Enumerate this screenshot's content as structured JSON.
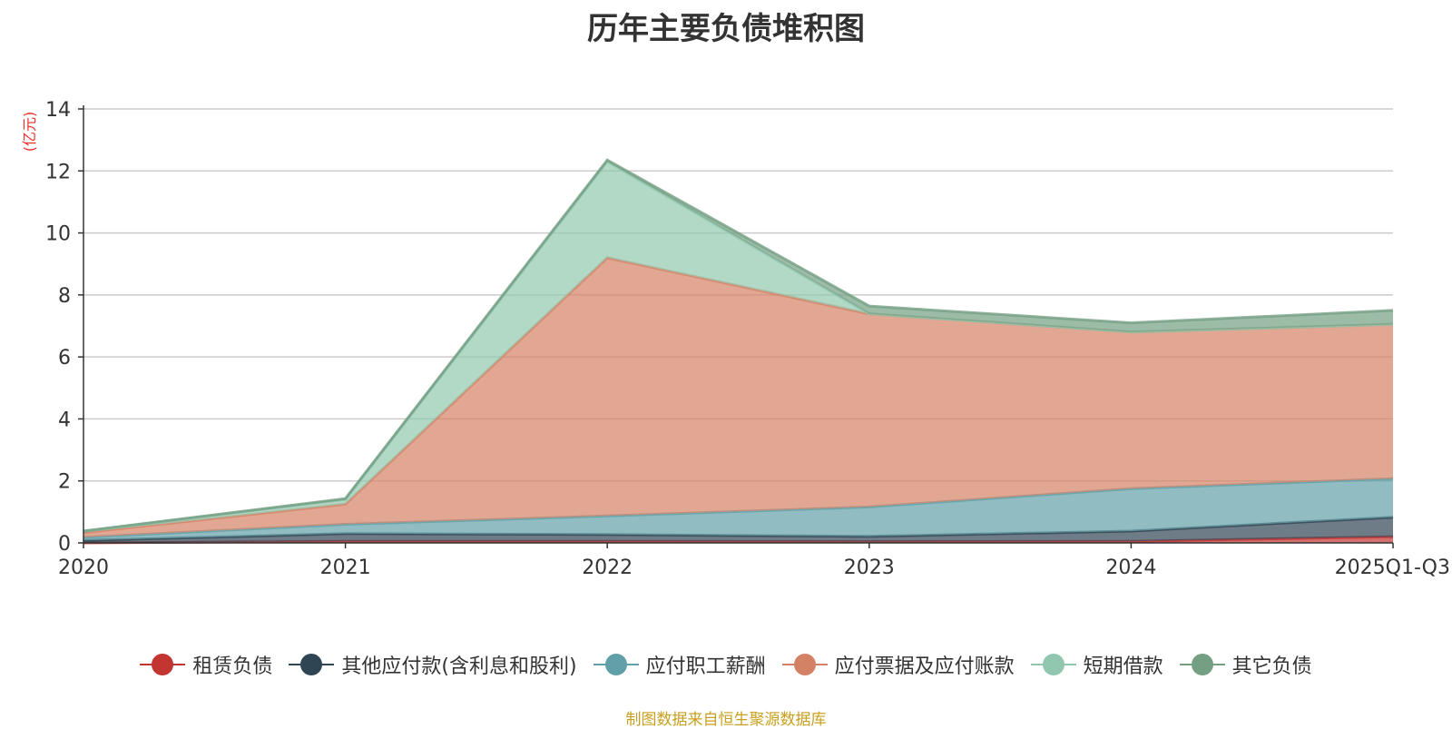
{
  "chart_data": {
    "type": "area",
    "title": "历年主要负债堆积图",
    "unit": "(亿元)",
    "stacked": true,
    "categories": [
      "2020",
      "2021",
      "2022",
      "2023",
      "2024",
      "2025Q1-Q3"
    ],
    "ylim": [
      0,
      14
    ],
    "yticks": [
      0,
      2,
      4,
      6,
      8,
      10,
      12,
      14
    ],
    "grid": true,
    "legend_position": "bottom",
    "series": [
      {
        "name": "租赁负债",
        "color": "#c23531",
        "values": [
          0,
          0.05,
          0.05,
          0.04,
          0.05,
          0.2
        ]
      },
      {
        "name": "其他应付款(含利息和股利)",
        "color": "#2f4554",
        "values": [
          0.08,
          0.25,
          0.22,
          0.17,
          0.33,
          0.63
        ]
      },
      {
        "name": "应付职工薪酬",
        "color": "#61a0a8",
        "values": [
          0.1,
          0.3,
          0.6,
          0.95,
          1.37,
          1.24
        ]
      },
      {
        "name": "应付票据及应付账款",
        "color": "#d48265",
        "values": [
          0.15,
          0.65,
          8.33,
          6.23,
          5.05,
          4.98
        ]
      },
      {
        "name": "短期借款",
        "color": "#91c7ae",
        "values": [
          0.05,
          0.15,
          3.1,
          0.0,
          0.0,
          0.0
        ]
      },
      {
        "name": "其它负债",
        "color": "#749f83",
        "values": [
          0.0,
          0.03,
          0.05,
          0.25,
          0.3,
          0.45
        ]
      }
    ]
  },
  "source_note": "制图数据来自恒生聚源数据库"
}
